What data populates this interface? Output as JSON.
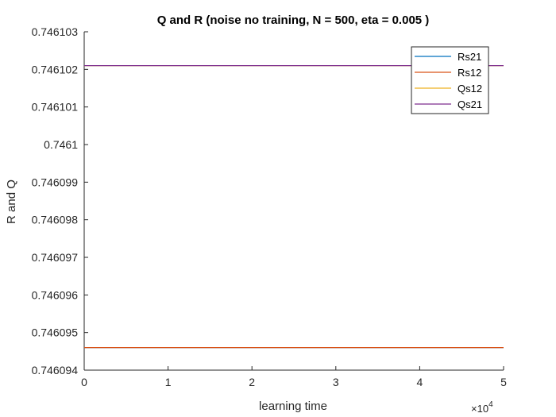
{
  "chart_data": {
    "type": "line",
    "title": "Q and R (noise no training, N = 500, eta = 0.005 )",
    "xlabel": "learning time",
    "ylabel": "R and Q",
    "xlim": [
      0,
      50000
    ],
    "ylim": [
      0.746094,
      0.746103
    ],
    "x_ticks": [
      0,
      10000,
      20000,
      30000,
      40000,
      50000
    ],
    "x_tick_labels": [
      "0",
      "1",
      "2",
      "3",
      "4",
      "5"
    ],
    "x_exponent_label": "×10",
    "x_exponent_power": "4",
    "y_ticks": [
      0.746094,
      0.746095,
      0.746096,
      0.746097,
      0.746098,
      0.746099,
      0.7461,
      0.746101,
      0.746102,
      0.746103
    ],
    "y_tick_labels": [
      "0.746094",
      "0.746095",
      "0.746096",
      "0.746097",
      "0.746098",
      "0.746099",
      "0.7461",
      "0.746101",
      "0.746102",
      "0.746103"
    ],
    "grid": false,
    "legend_position": "top-right",
    "series": [
      {
        "name": "Rs21",
        "color": "#0072BD",
        "x": [
          0,
          50000
        ],
        "y": [
          0.7460946,
          0.7460946
        ]
      },
      {
        "name": "Rs12",
        "color": "#D95319",
        "x": [
          0,
          50000
        ],
        "y": [
          0.7460946,
          0.7460946
        ]
      },
      {
        "name": "Qs12",
        "color": "#EDB120",
        "x": [
          0,
          50000
        ],
        "y": [
          0.7461021,
          0.7461021
        ]
      },
      {
        "name": "Qs21",
        "color": "#7E2F8E",
        "x": [
          0,
          50000
        ],
        "y": [
          0.7461021,
          0.7461021
        ]
      }
    ]
  }
}
